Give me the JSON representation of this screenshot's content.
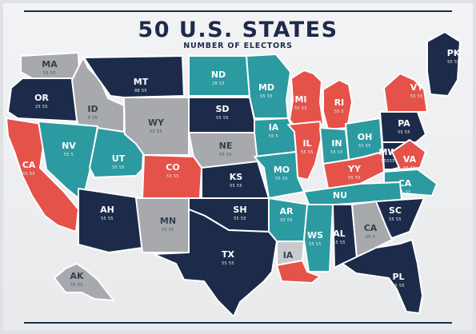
{
  "title": "50 U.S. STATES",
  "subtitle": "NUMBER OF ELECTORS",
  "colors": {
    "navy": "#1d2b4a",
    "teal": "#2c9aa1",
    "red": "#e5524a",
    "gray": "#a7a9ad",
    "light_gray": "#c9cacd",
    "background": "#e9eaec"
  },
  "regions": [
    {
      "label": "MA",
      "value": "55 55",
      "color": "gray"
    },
    {
      "label": "OR",
      "value": "25 55",
      "color": "navy"
    },
    {
      "label": "ID",
      "value": "8 55",
      "color": "gray"
    },
    {
      "label": "MT",
      "value": "88 55",
      "color": "navy"
    },
    {
      "label": "ND",
      "value": "28 55",
      "color": "teal"
    },
    {
      "label": "MD",
      "value": "65 55",
      "color": "teal"
    },
    {
      "label": "MI",
      "value": "55 55",
      "color": "red"
    },
    {
      "label": "RI",
      "value": "55 5",
      "color": "red"
    },
    {
      "label": "VY",
      "value": "55 55",
      "color": "red"
    },
    {
      "label": "PK",
      "value": "55 55",
      "color": "navy"
    },
    {
      "label": "CA",
      "value": "55 55",
      "color": "red"
    },
    {
      "label": "NV",
      "value": "55 5",
      "color": "teal"
    },
    {
      "label": "UT",
      "value": "55 55",
      "color": "teal"
    },
    {
      "label": "WY",
      "value": "55 55",
      "color": "gray"
    },
    {
      "label": "SD",
      "value": "55 55",
      "color": "navy"
    },
    {
      "label": "IA",
      "value": "55 5",
      "color": "teal"
    },
    {
      "label": "IL",
      "value": "55 55",
      "color": "red"
    },
    {
      "label": "IN",
      "value": "55 55",
      "color": "teal"
    },
    {
      "label": "OH",
      "value": "55 55",
      "color": "teal"
    },
    {
      "label": "PA",
      "value": "55 55",
      "color": "navy"
    },
    {
      "label": "NE",
      "value": "55 55",
      "color": "gray"
    },
    {
      "label": "CO",
      "value": "55 55",
      "color": "red"
    },
    {
      "label": "MO",
      "value": "55 55",
      "color": "teal"
    },
    {
      "label": "YY",
      "value": "55 55",
      "color": "red"
    },
    {
      "label": "MW",
      "value": "55555",
      "color": "navy"
    },
    {
      "label": "VA",
      "value": "55 55",
      "color": "red"
    },
    {
      "label": "KS",
      "value": "55 55",
      "color": "navy"
    },
    {
      "label": "CA",
      "value": "55 55",
      "color": "teal"
    },
    {
      "label": "NU",
      "value": "",
      "color": "teal"
    },
    {
      "label": "AH",
      "value": "55 55",
      "color": "navy"
    },
    {
      "label": "MN",
      "value": "55 55",
      "color": "gray"
    },
    {
      "label": "SH",
      "value": "55 55",
      "color": "navy"
    },
    {
      "label": "AR",
      "value": "55 55",
      "color": "teal"
    },
    {
      "label": "SC",
      "value": "55 55",
      "color": "navy"
    },
    {
      "label": "WS",
      "value": "55 55",
      "color": "teal"
    },
    {
      "label": "AL",
      "value": "55 55",
      "color": "navy"
    },
    {
      "label": "CA",
      "value": "55 5",
      "color": "gray"
    },
    {
      "label": "TX",
      "value": "55 55",
      "color": "navy"
    },
    {
      "label": "IA",
      "value": "",
      "color": "light_gray"
    },
    {
      "label": "PL",
      "value": "55 55",
      "color": "navy"
    },
    {
      "label": "AK",
      "value": "55 55",
      "color": "gray"
    },
    {
      "label": "",
      "value": "",
      "color": "red"
    }
  ]
}
